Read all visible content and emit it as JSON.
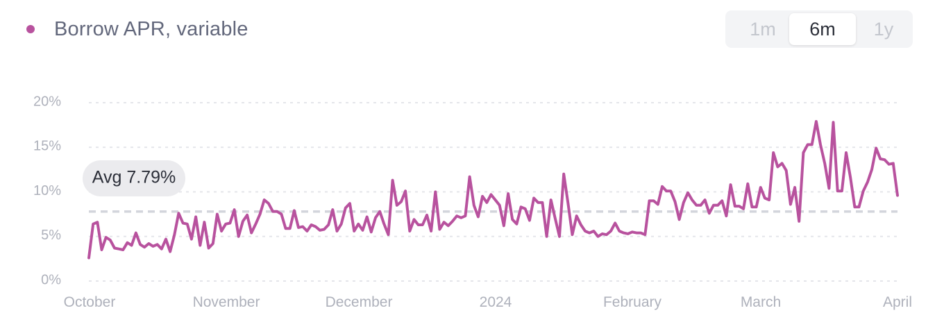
{
  "legend": {
    "label": "Borrow APR, variable",
    "color": "#b8529e"
  },
  "range_selector": {
    "options": [
      "1m",
      "6m",
      "1y"
    ],
    "selected": "6m"
  },
  "chart_data": {
    "type": "line",
    "series": [
      {
        "name": "Borrow APR, variable",
        "color": "#b8529e",
        "y": [
          2.6,
          6.4,
          6.6,
          3.5,
          4.9,
          4.6,
          3.7,
          3.6,
          3.5,
          4.3,
          4.0,
          5.4,
          4.1,
          3.8,
          4.2,
          3.9,
          4.1,
          3.6,
          4.7,
          3.3,
          5.2,
          7.6,
          6.5,
          6.4,
          4.7,
          7.2,
          4.0,
          6.6,
          3.7,
          4.2,
          7.5,
          5.6,
          6.4,
          6.5,
          8.0,
          5.0,
          6.7,
          7.4,
          5.4,
          6.4,
          7.5,
          9.1,
          8.7,
          7.8,
          7.8,
          7.5,
          5.9,
          5.9,
          7.9,
          6.0,
          6.1,
          5.6,
          6.3,
          6.1,
          5.7,
          5.8,
          6.3,
          8.0,
          5.6,
          6.4,
          8.2,
          8.7,
          5.6,
          6.4,
          5.7,
          7.2,
          5.5,
          7.1,
          7.8,
          6.4,
          5.2,
          11.3,
          8.5,
          8.9,
          10.1,
          5.6,
          6.9,
          6.3,
          6.3,
          7.4,
          5.6,
          10.0,
          5.8,
          6.6,
          6.2,
          6.7,
          7.3,
          7.1,
          7.3,
          11.7,
          8.5,
          7.2,
          9.5,
          8.8,
          9.7,
          9.1,
          8.5,
          6.2,
          9.8,
          6.9,
          6.4,
          8.3,
          8.1,
          6.8,
          9.3,
          8.8,
          8.8,
          5.0,
          9.1,
          7.0,
          5.0,
          12.0,
          8.7,
          5.2,
          7.3,
          6.3,
          5.6,
          5.4,
          5.6,
          5.0,
          5.3,
          5.2,
          5.6,
          6.5,
          5.6,
          5.4,
          5.3,
          5.5,
          5.4,
          5.4,
          5.2,
          9.0,
          9.0,
          8.6,
          10.6,
          10.1,
          10.1,
          8.9,
          6.9,
          8.8,
          9.9,
          9.1,
          8.5,
          8.5,
          9.1,
          7.6,
          8.5,
          8.5,
          9.0,
          7.3,
          10.8,
          8.4,
          8.4,
          8.1,
          10.9,
          8.3,
          8.3,
          10.5,
          9.3,
          9.1,
          14.4,
          12.8,
          13.2,
          12.4,
          8.6,
          10.5,
          6.7,
          14.4,
          15.3,
          15.3,
          17.9,
          15.3,
          13.2,
          10.4,
          17.8,
          10.1,
          10.1,
          14.4,
          11.6,
          8.3,
          8.3,
          10.1,
          11.1,
          12.5,
          14.9,
          13.7,
          13.6,
          13.1,
          13.2,
          9.6
        ]
      }
    ],
    "x_range": [
      "October",
      "April"
    ],
    "x_tick_labels": [
      "October",
      "November",
      "December",
      "2024",
      "February",
      "March",
      "April"
    ],
    "y_ticks": [
      0,
      5,
      10,
      15,
      20
    ],
    "y_tick_labels": [
      "0%",
      "5%",
      "10%",
      "15%",
      "20%"
    ],
    "ylim": [
      0,
      20
    ],
    "average": {
      "value": 7.79,
      "label": "Avg 7.79%"
    },
    "grid": true
  }
}
